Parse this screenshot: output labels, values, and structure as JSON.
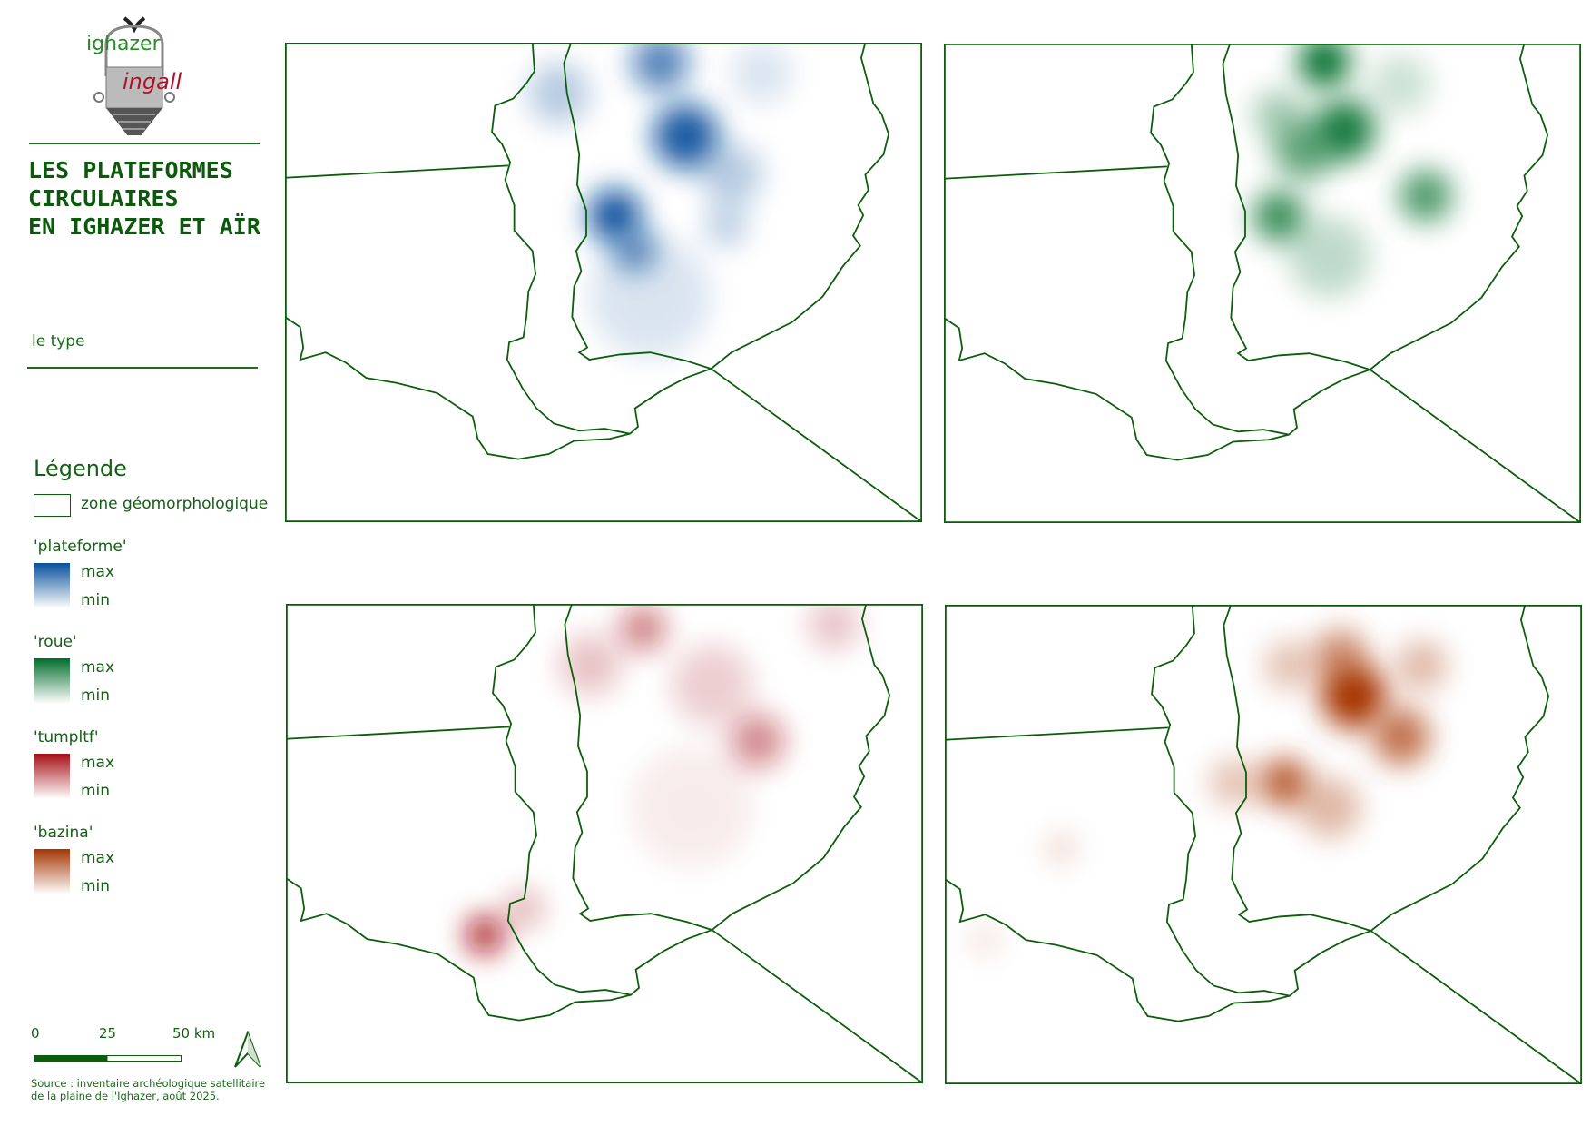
{
  "logo": {
    "text_top": "ighazer",
    "text_bottom": "ingall"
  },
  "title": {
    "lines": [
      "Les plateformes",
      "circulaires",
      "en Ighazer et Aïr"
    ]
  },
  "subtitle": "le type",
  "legend": {
    "heading": "Légende",
    "zone_label": "zone géomorphologique",
    "groups": [
      {
        "name": "'plateforme'",
        "max": "max",
        "min": "min",
        "color": "#08519c"
      },
      {
        "name": "'roue'",
        "max": "max",
        "min": "min",
        "color": "#006d2c"
      },
      {
        "name": "'tumpltf'",
        "max": "max",
        "min": "min",
        "color": "#a50f15"
      },
      {
        "name": "'bazina'",
        "max": "max",
        "min": "min",
        "color": "#a63603"
      }
    ]
  },
  "scalebar": {
    "labels": [
      "0",
      "25",
      "50 km"
    ]
  },
  "north_arrow": "north-arrow-icon",
  "source": [
    "Source : inventaire archéologique satellitaire",
    "de la plaine de l'Ighazer, août 2025."
  ],
  "maps": [
    {
      "type": "'plateforme'",
      "color": "#08519c"
    },
    {
      "type": "'roue'",
      "color": "#006d2c"
    },
    {
      "type": "'tumpltf'",
      "color": "#a50f15"
    },
    {
      "type": "'bazina'",
      "color": "#a63603"
    }
  ]
}
